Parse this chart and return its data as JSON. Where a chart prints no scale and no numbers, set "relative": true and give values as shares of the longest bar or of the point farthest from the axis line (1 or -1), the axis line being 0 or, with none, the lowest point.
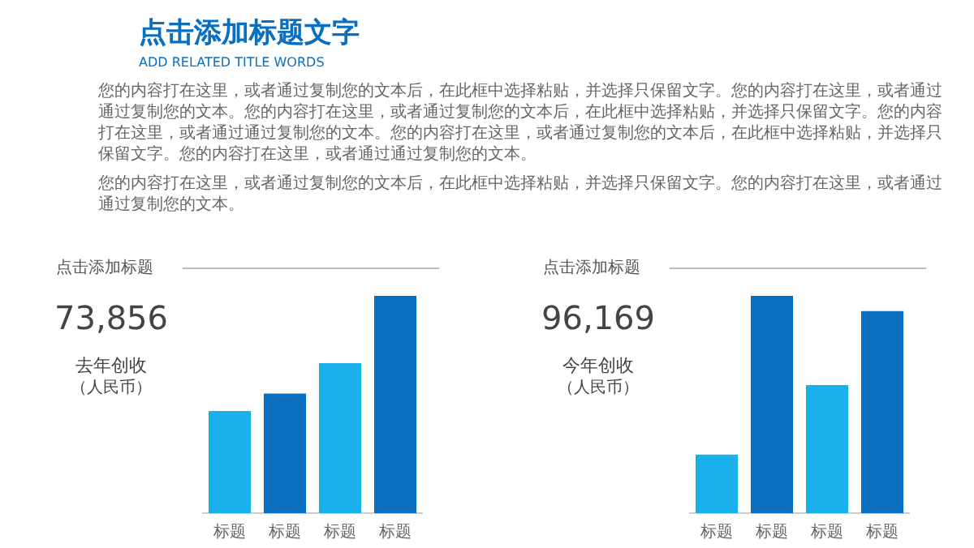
{
  "chart_data": [
    {
      "type": "other",
      "title": "点击添加标题文字",
      "subtitle": "ADD RELATED TITLE WORDS",
      "color": "#0b6fc0",
      "annotations": [
        "您的内容打在这里，或者通过复制您的文本后，在此框中选择粘贴，并选择只保留文字。您的内容打在这里，或者通过通过复制您的文本。您的内容打在这里，或者通过复制您的文本后，在此框中选择粘贴，并选择只保留文字。您的内容打在这里，或者通过通过复制您的文本。您的内容打在这里，或者通过复制您的文本后，在此框中选择粘贴，并选择只保留文字。您的内容打在这里，或者通过通过复制您的文本。",
        "您的内容打在这里，或者通过复制您的文本后，在此框中选择粘贴，并选择只保留文字。您的内容打在这里，或者通过通过复制您的文本。"
      ]
    },
    {
      "type": "bar",
      "title": "点击添加标题",
      "relative": true,
      "categories": [
        "标题",
        "标题",
        "标题",
        "标题"
      ],
      "values": [
        0.47,
        0.55,
        0.69,
        1
      ],
      "colors": [
        "#1ab0ea",
        "#0b6fc0",
        "#1ab0ea",
        "#0b6fc0"
      ],
      "annotations": [
        "73,856",
        "去年创收",
        "（人民币）"
      ]
    },
    {
      "type": "bar",
      "title": "点击添加标题",
      "relative": true,
      "categories": [
        "标题",
        "标题",
        "标题",
        "标题"
      ],
      "values": [
        0.27,
        1,
        0.59,
        0.93
      ],
      "colors": [
        "#1ab0ea",
        "#0b6fc0",
        "#1ab0ea",
        "#0b6fc0"
      ],
      "annotations": [
        "96,169",
        "今年创收",
        "（人民币）"
      ]
    }
  ]
}
